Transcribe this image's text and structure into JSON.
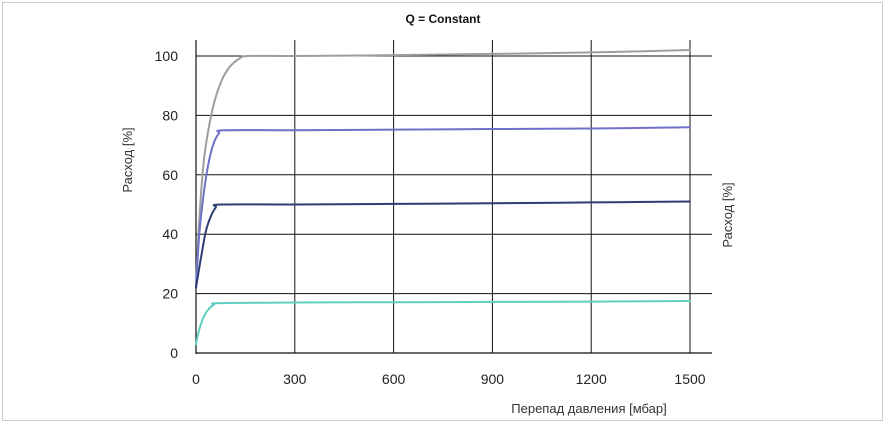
{
  "chart_data": {
    "type": "line",
    "title": "Q = Constant",
    "xlabel": "Перепад давления [мбар]",
    "ylabel": "Расход [%]",
    "ylabel_right": "Расход [%]",
    "xlim": [
      0,
      1500
    ],
    "ylim": [
      0,
      100
    ],
    "x_ticks": [
      0,
      300,
      600,
      900,
      1200,
      1500
    ],
    "y_ticks": [
      0,
      20,
      40,
      60,
      80,
      100
    ],
    "grid": true,
    "series": [
      {
        "color": "#9e9e9e",
        "x": [
          0,
          10,
          25,
          50,
          75,
          100,
          130,
          160,
          300,
          600,
          900,
          1200,
          1500
        ],
        "y": [
          22,
          45,
          66,
          82,
          91,
          96,
          99,
          100,
          100,
          100.3,
          100.7,
          101.2,
          102
        ]
      },
      {
        "color": "#6f70c8",
        "x": [
          0,
          10,
          25,
          40,
          55,
          70,
          85,
          300,
          600,
          900,
          1200,
          1500
        ],
        "y": [
          22,
          40,
          55,
          65,
          71,
          74,
          75,
          75,
          75.2,
          75.4,
          75.6,
          76
        ]
      },
      {
        "color": "#2c3e74",
        "x": [
          0,
          15,
          30,
          45,
          60,
          75,
          300,
          600,
          900,
          1200,
          1500
        ],
        "y": [
          22,
          32,
          41,
          46,
          49,
          50,
          50,
          50.2,
          50.4,
          50.7,
          51
        ]
      },
      {
        "color": "#5ccfc2",
        "x": [
          0,
          10,
          25,
          40,
          55,
          70,
          300,
          600,
          900,
          1200,
          1500
        ],
        "y": [
          3,
          8,
          12.5,
          15,
          16.3,
          16.8,
          17,
          17.1,
          17.2,
          17.3,
          17.5
        ]
      }
    ]
  }
}
